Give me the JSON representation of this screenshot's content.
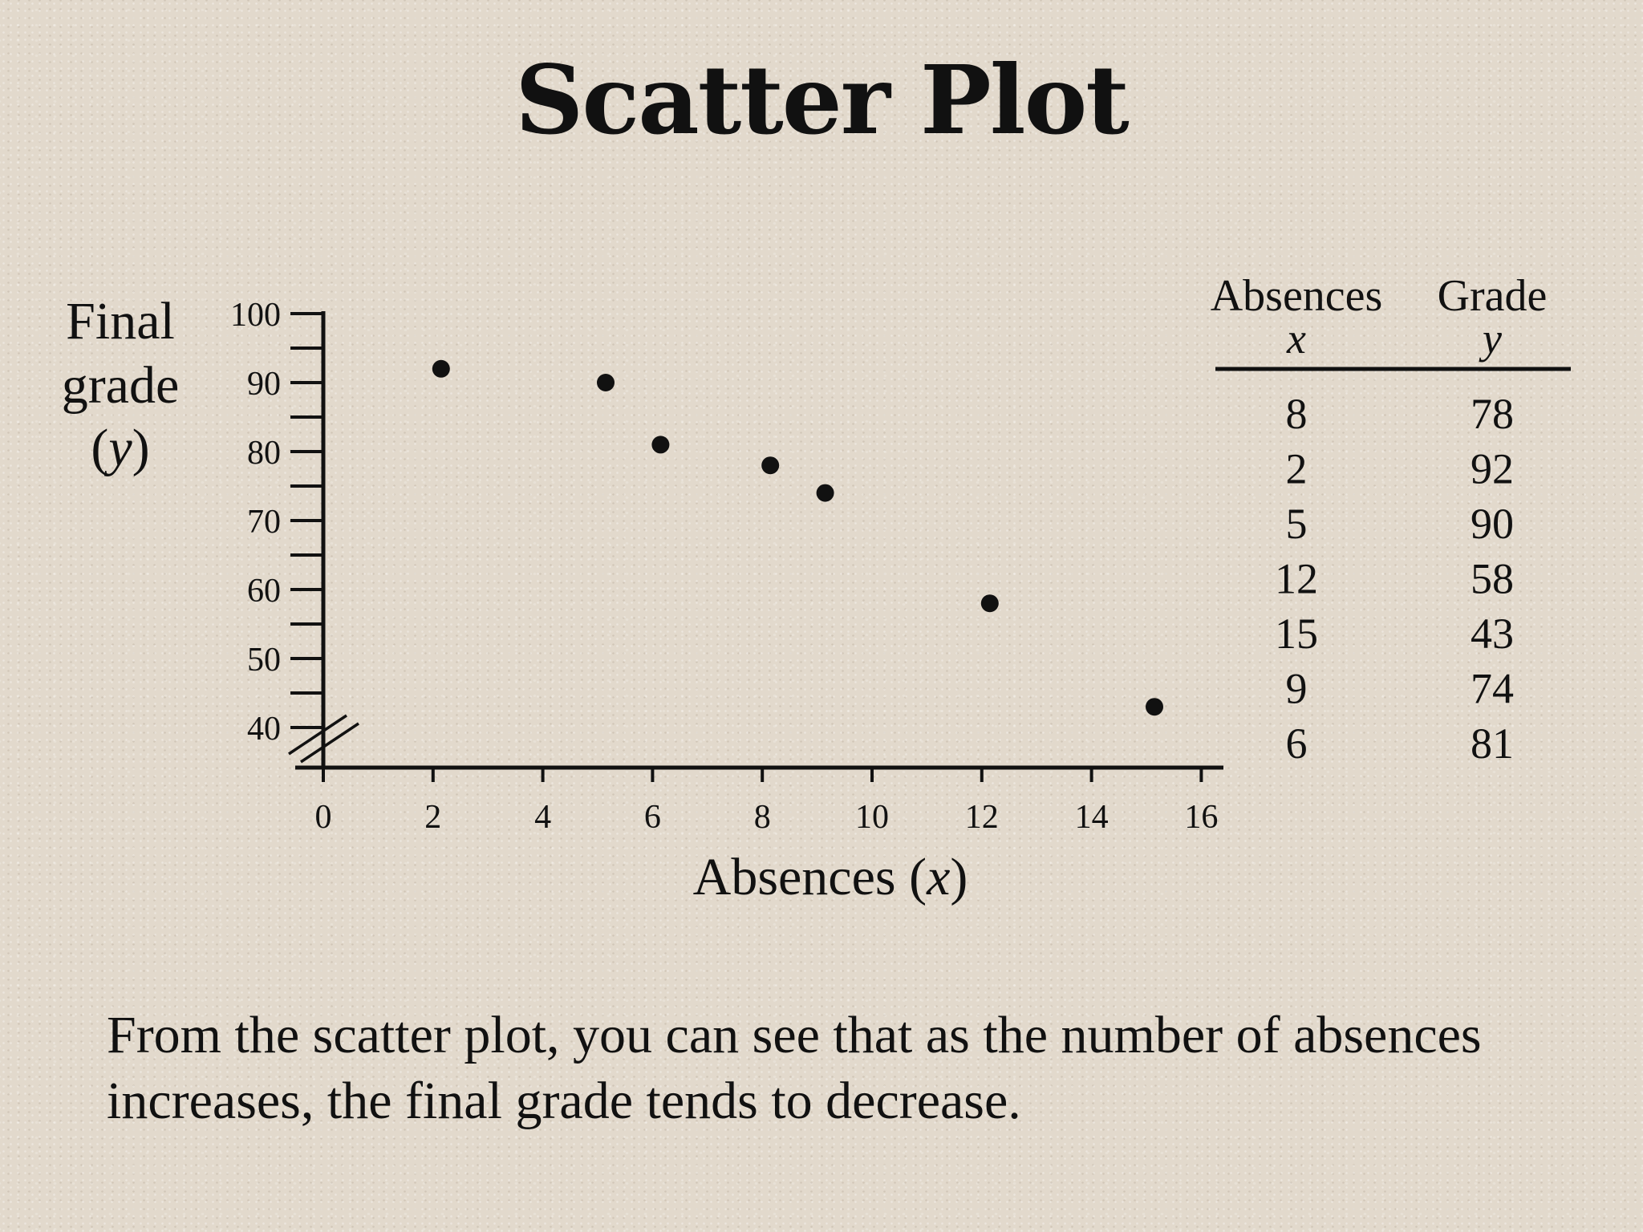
{
  "title": "Scatter Plot",
  "caption": "From the scatter plot, you can see that as the number of absences increases, the final grade tends to decrease.",
  "chart_data": {
    "type": "scatter",
    "xlabel_text": "Absences",
    "xlabel_var": "x",
    "ylabel_line1": "Final",
    "ylabel_line2": "grade",
    "ylabel_var": "y",
    "xlim": [
      0,
      16
    ],
    "ylim": [
      40,
      100
    ],
    "y_axis_break": true,
    "x_ticks": [
      0,
      2,
      4,
      6,
      8,
      10,
      12,
      14,
      16
    ],
    "y_ticks": [
      40,
      50,
      60,
      70,
      80,
      90,
      100
    ],
    "grid": false,
    "points": [
      {
        "x": 8,
        "y": 78
      },
      {
        "x": 2,
        "y": 92
      },
      {
        "x": 5,
        "y": 90
      },
      {
        "x": 12,
        "y": 58
      },
      {
        "x": 15,
        "y": 43
      },
      {
        "x": 9,
        "y": 74
      },
      {
        "x": 6,
        "y": 81
      }
    ],
    "table": {
      "headers": [
        {
          "label": "Absences",
          "var": "x"
        },
        {
          "label": "Grade",
          "var": "y"
        }
      ],
      "rows": [
        [
          "8",
          "78"
        ],
        [
          "2",
          "92"
        ],
        [
          "5",
          "90"
        ],
        [
          "12",
          "58"
        ],
        [
          "15",
          "43"
        ],
        [
          "9",
          "74"
        ],
        [
          "6",
          "81"
        ]
      ]
    }
  },
  "colors": {
    "background": "#e2d9cc",
    "ink": "#111111"
  }
}
